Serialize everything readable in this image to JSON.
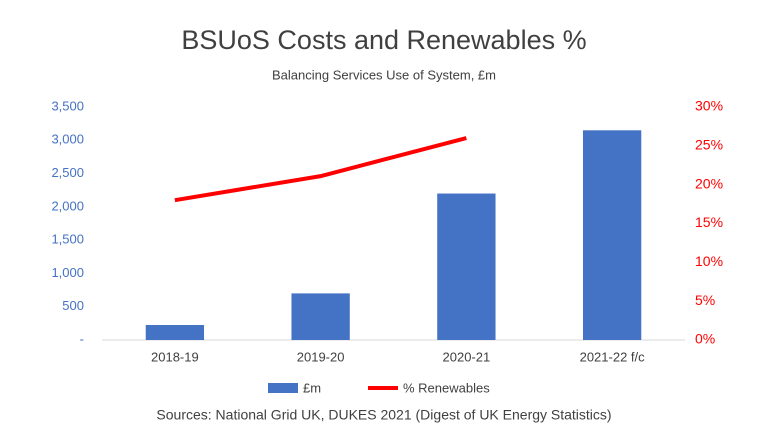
{
  "chart_data": {
    "type": "bar",
    "title": "BSUoS Costs and Renewables %",
    "subtitle": "Balancing Services Use of System, £m",
    "source": "Sources: National Grid UK, DUKES 2021 (Digest of UK Energy Statistics)",
    "categories": [
      "2018-19",
      "2019-20",
      "2020-21",
      "2021-22 f/c"
    ],
    "series": [
      {
        "name": "£m",
        "type": "bar",
        "color": "#4472c4",
        "values": [
          225,
          700,
          2200,
          3150
        ]
      },
      {
        "name": "% Renewables",
        "type": "line",
        "axis": "y2",
        "color": "#ff0000",
        "values": [
          18,
          21.1,
          26,
          null
        ]
      }
    ],
    "ylim": [
      0,
      3500
    ],
    "yticks": [
      {
        "value": 0,
        "label": "-"
      },
      500,
      {
        "value": 1000,
        "label": "1,000"
      },
      {
        "value": 1500,
        "label": "1,500"
      },
      {
        "value": 2000,
        "label": "2,000"
      },
      {
        "value": 2500,
        "label": "2,500"
      },
      {
        "value": 3000,
        "label": "3,000"
      },
      {
        "value": 3500,
        "label": "3,500"
      }
    ],
    "y2lim": [
      0,
      30
    ],
    "y2ticks": [
      {
        "value": 0,
        "label": "0%"
      },
      {
        "value": 5,
        "label": "5%"
      },
      {
        "value": 10,
        "label": "10%"
      },
      {
        "value": 15,
        "label": "15%"
      },
      {
        "value": 20,
        "label": "20%"
      },
      {
        "value": 25,
        "label": "25%"
      },
      {
        "value": 30,
        "label": "30%"
      }
    ],
    "grid": false,
    "legend": "bottom"
  }
}
